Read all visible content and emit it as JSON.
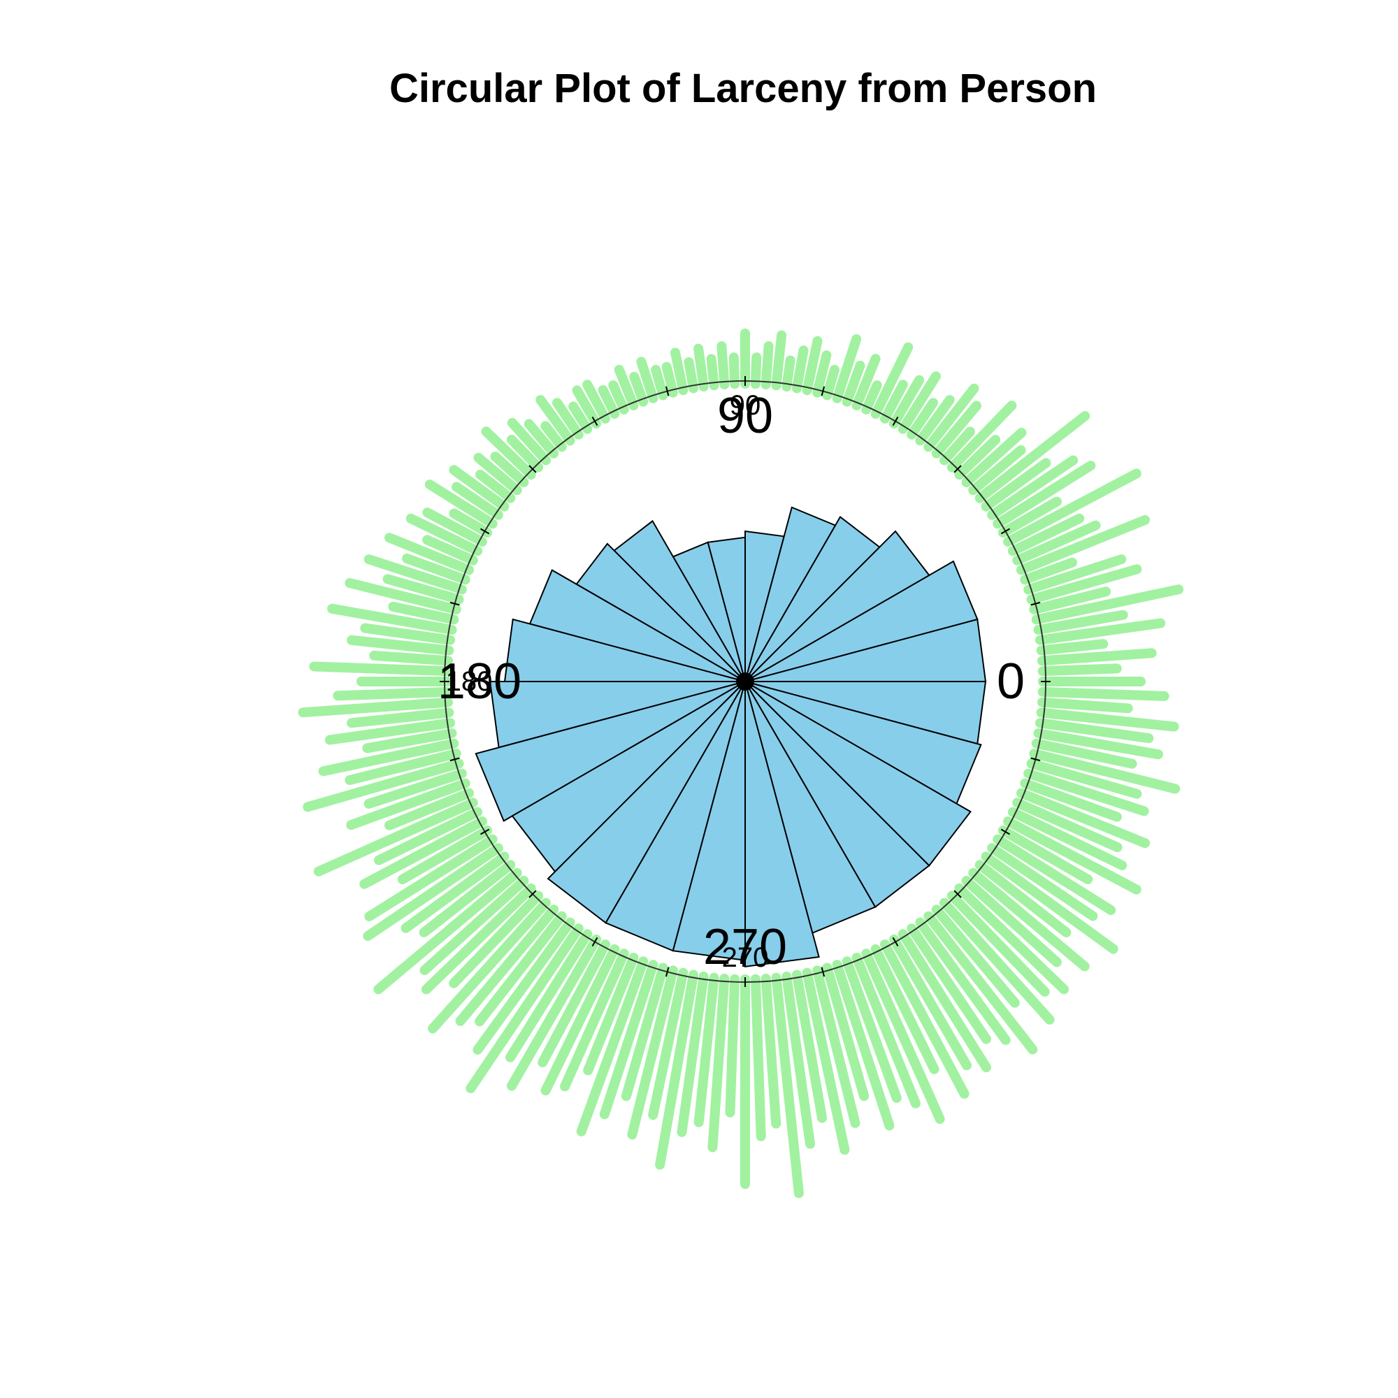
{
  "chart_data": {
    "type": "rose",
    "title": "Circular Plot of Larceny from Person",
    "angle_labels": [
      {
        "value": 0,
        "text": "0"
      },
      {
        "value": 90,
        "text": "90"
      },
      {
        "value": 180,
        "text": "180"
      },
      {
        "value": 270,
        "text": "270"
      }
    ],
    "inner_angle_labels": [
      {
        "value": 90,
        "text": "90"
      },
      {
        "value": 180,
        "text": "180"
      },
      {
        "value": 270,
        "text": "270"
      }
    ],
    "tick_step_degrees": 15,
    "bin_width_degrees": 15,
    "bins": [
      {
        "start": 0,
        "end": 15,
        "value": 0.64
      },
      {
        "start": 15,
        "end": 30,
        "value": 0.64
      },
      {
        "start": 30,
        "end": 45,
        "value": 0.5
      },
      {
        "start": 45,
        "end": 60,
        "value": 0.4
      },
      {
        "start": 60,
        "end": 75,
        "value": 0.36
      },
      {
        "start": 75,
        "end": 90,
        "value": 0.25
      },
      {
        "start": 90,
        "end": 105,
        "value": 0.23
      },
      {
        "start": 105,
        "end": 120,
        "value": 0.23
      },
      {
        "start": 120,
        "end": 135,
        "value": 0.38
      },
      {
        "start": 135,
        "end": 150,
        "value": 0.42
      },
      {
        "start": 150,
        "end": 165,
        "value": 0.55
      },
      {
        "start": 165,
        "end": 180,
        "value": 0.64
      },
      {
        "start": 180,
        "end": 195,
        "value": 0.72
      },
      {
        "start": 195,
        "end": 210,
        "value": 0.86
      },
      {
        "start": 210,
        "end": 225,
        "value": 0.8
      },
      {
        "start": 225,
        "end": 240,
        "value": 0.86
      },
      {
        "start": 240,
        "end": 255,
        "value": 0.86
      },
      {
        "start": 255,
        "end": 270,
        "value": 0.86
      },
      {
        "start": 270,
        "end": 285,
        "value": 0.9
      },
      {
        "start": 285,
        "end": 300,
        "value": 0.75
      },
      {
        "start": 300,
        "end": 315,
        "value": 0.75
      },
      {
        "start": 315,
        "end": 330,
        "value": 0.75
      },
      {
        "start": 330,
        "end": 345,
        "value": 0.66
      },
      {
        "start": 345,
        "end": 360,
        "value": 0.64
      }
    ],
    "rlim": [
      0,
      1
    ],
    "stack_profile": {
      "step_degrees": 2,
      "counts": [
        8,
        6,
        9,
        5,
        10,
        7,
        12,
        6,
        9,
        8,
        4,
        11,
        7,
        6,
        12,
        5,
        9,
        8,
        6,
        11,
        5,
        6,
        4,
        7,
        3,
        5,
        6,
        4,
        3,
        5,
        4,
        3,
        6,
        2,
        4,
        3,
        5,
        2,
        3,
        4,
        3,
        2,
        4,
        3,
        2,
        4,
        2,
        3,
        2,
        3,
        2,
        3,
        2,
        2,
        3,
        2,
        3,
        2,
        2,
        3,
        3,
        2,
        3,
        4,
        2,
        3,
        4,
        3,
        5,
        3,
        4,
        3,
        5,
        4,
        6,
        3,
        5,
        6,
        4,
        7,
        5,
        8,
        6,
        9,
        5,
        10,
        7,
        8,
        6,
        11,
        7,
        9,
        12,
        8,
        10,
        7,
        11,
        9,
        13,
        8,
        10,
        7,
        14,
        9,
        11,
        8,
        12,
        13,
        10,
        9,
        15,
        11,
        12,
        10,
        14,
        12,
        11,
        13,
        16,
        12,
        14,
        11,
        13,
        12,
        10,
        15,
        13,
        11,
        14,
        12,
        16,
        13,
        12,
        14,
        11,
        17,
        13,
        12,
        18,
        14,
        12,
        15,
        13,
        11,
        14,
        12,
        13,
        15,
        11,
        14,
        12,
        13,
        11,
        12,
        14,
        10,
        13,
        11,
        12,
        10,
        12,
        9,
        13,
        10,
        11,
        8,
        12,
        10,
        9,
        11,
        8,
        10,
        9,
        12,
        8,
        10,
        9,
        11,
        7,
        10
      ]
    }
  },
  "colors": {
    "bar_fill": "#87ceeb",
    "bar_stroke": "#000000",
    "stack_color": "#90ee90",
    "circle_stroke": "#333333",
    "background": "#ffffff"
  }
}
